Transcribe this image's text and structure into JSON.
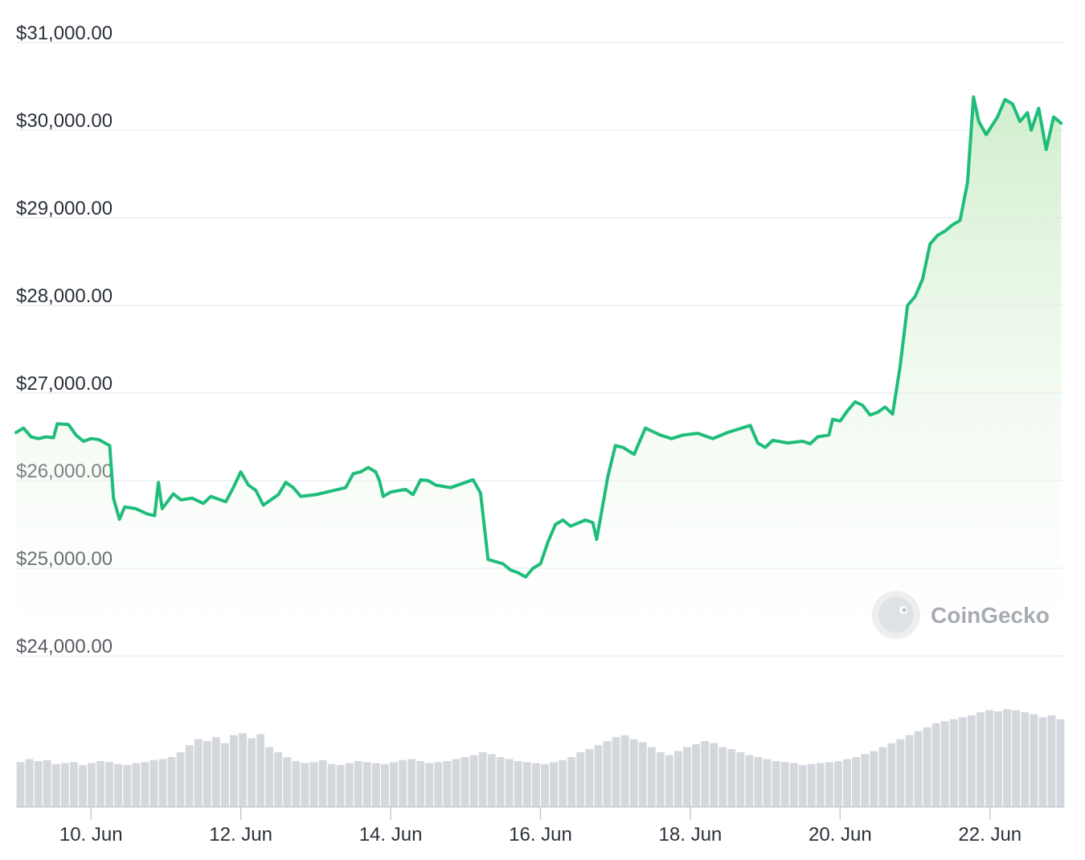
{
  "watermark": {
    "text": "CoinGecko"
  },
  "colors": {
    "line": "#1fbd7a",
    "fill_top": "#c9ebc4",
    "grid": "#eceff2",
    "volume": "#d4d7dc",
    "axis": "#c6cad0",
    "tick_text": "#2b3139"
  },
  "chart_data": {
    "type": "line",
    "title": "",
    "xlabel": "",
    "ylabel": "",
    "x_range": [
      "9 Jun",
      "23 Jun"
    ],
    "ylim": [
      24000,
      31000
    ],
    "y_ticks": [
      {
        "value": 31000,
        "label": "$31,000.00"
      },
      {
        "value": 30000,
        "label": "$30,000.00"
      },
      {
        "value": 29000,
        "label": "$29,000.00"
      },
      {
        "value": 28000,
        "label": "$28,000.00"
      },
      {
        "value": 27000,
        "label": "$27,000.00"
      },
      {
        "value": 26000,
        "label": "$26,000.00"
      },
      {
        "value": 25000,
        "label": "$25,000.00"
      },
      {
        "value": 24000,
        "label": "$24,000.00"
      }
    ],
    "x_ticks": [
      {
        "day": 10,
        "label": "10. Jun"
      },
      {
        "day": 12,
        "label": "12. Jun"
      },
      {
        "day": 14,
        "label": "14. Jun"
      },
      {
        "day": 16,
        "label": "16. Jun"
      },
      {
        "day": 18,
        "label": "18. Jun"
      },
      {
        "day": 20,
        "label": "20. Jun"
      },
      {
        "day": 22,
        "label": "22. Jun"
      }
    ],
    "grid": true,
    "legend": "none",
    "series": [
      {
        "values": [
          [
            9.0,
            26550
          ],
          [
            9.1,
            26600
          ],
          [
            9.2,
            26500
          ],
          [
            9.3,
            26480
          ],
          [
            9.4,
            26500
          ],
          [
            9.5,
            26490
          ],
          [
            9.55,
            26650
          ],
          [
            9.7,
            26640
          ],
          [
            9.8,
            26520
          ],
          [
            9.9,
            26450
          ],
          [
            10.0,
            26480
          ],
          [
            10.1,
            26470
          ],
          [
            10.25,
            26400
          ],
          [
            10.3,
            25800
          ],
          [
            10.38,
            25560
          ],
          [
            10.45,
            25700
          ],
          [
            10.6,
            25680
          ],
          [
            10.75,
            25620
          ],
          [
            10.85,
            25600
          ],
          [
            10.9,
            25980
          ],
          [
            10.95,
            25680
          ],
          [
            11.1,
            25850
          ],
          [
            11.2,
            25780
          ],
          [
            11.35,
            25800
          ],
          [
            11.5,
            25740
          ],
          [
            11.6,
            25820
          ],
          [
            11.8,
            25760
          ],
          [
            11.9,
            25920
          ],
          [
            12.0,
            26100
          ],
          [
            12.1,
            25950
          ],
          [
            12.2,
            25890
          ],
          [
            12.3,
            25720
          ],
          [
            12.4,
            25780
          ],
          [
            12.5,
            25840
          ],
          [
            12.6,
            25980
          ],
          [
            12.7,
            25920
          ],
          [
            12.8,
            25820
          ],
          [
            13.0,
            25840
          ],
          [
            13.2,
            25880
          ],
          [
            13.4,
            25920
          ],
          [
            13.5,
            26080
          ],
          [
            13.6,
            26100
          ],
          [
            13.7,
            26150
          ],
          [
            13.8,
            26100
          ],
          [
            13.85,
            26000
          ],
          [
            13.9,
            25820
          ],
          [
            14.0,
            25870
          ],
          [
            14.2,
            25900
          ],
          [
            14.3,
            25840
          ],
          [
            14.4,
            26010
          ],
          [
            14.5,
            26000
          ],
          [
            14.6,
            25950
          ],
          [
            14.8,
            25920
          ],
          [
            15.0,
            25980
          ],
          [
            15.1,
            26010
          ],
          [
            15.2,
            25860
          ],
          [
            15.3,
            25100
          ],
          [
            15.5,
            25050
          ],
          [
            15.6,
            24980
          ],
          [
            15.7,
            24950
          ],
          [
            15.8,
            24900
          ],
          [
            15.9,
            25000
          ],
          [
            16.0,
            25050
          ],
          [
            16.1,
            25300
          ],
          [
            16.2,
            25500
          ],
          [
            16.3,
            25550
          ],
          [
            16.4,
            25480
          ],
          [
            16.6,
            25550
          ],
          [
            16.7,
            25520
          ],
          [
            16.75,
            25330
          ],
          [
            16.9,
            26050
          ],
          [
            17.0,
            26400
          ],
          [
            17.1,
            26380
          ],
          [
            17.25,
            26300
          ],
          [
            17.4,
            26600
          ],
          [
            17.5,
            26560
          ],
          [
            17.6,
            26520
          ],
          [
            17.75,
            26480
          ],
          [
            17.9,
            26520
          ],
          [
            18.1,
            26540
          ],
          [
            18.3,
            26480
          ],
          [
            18.5,
            26550
          ],
          [
            18.8,
            26630
          ],
          [
            18.9,
            26430
          ],
          [
            19.0,
            26380
          ],
          [
            19.1,
            26460
          ],
          [
            19.3,
            26430
          ],
          [
            19.5,
            26450
          ],
          [
            19.6,
            26420
          ],
          [
            19.7,
            26500
          ],
          [
            19.85,
            26520
          ],
          [
            19.9,
            26700
          ],
          [
            20.0,
            26680
          ],
          [
            20.1,
            26800
          ],
          [
            20.2,
            26900
          ],
          [
            20.3,
            26860
          ],
          [
            20.4,
            26750
          ],
          [
            20.5,
            26780
          ],
          [
            20.6,
            26840
          ],
          [
            20.7,
            26760
          ],
          [
            20.8,
            27300
          ],
          [
            20.9,
            28000
          ],
          [
            21.0,
            28100
          ],
          [
            21.1,
            28300
          ],
          [
            21.2,
            28700
          ],
          [
            21.3,
            28800
          ],
          [
            21.4,
            28850
          ],
          [
            21.5,
            28920
          ],
          [
            21.6,
            28970
          ],
          [
            21.7,
            29400
          ],
          [
            21.78,
            30380
          ],
          [
            21.85,
            30100
          ],
          [
            21.95,
            29950
          ],
          [
            22.1,
            30150
          ],
          [
            22.2,
            30350
          ],
          [
            22.3,
            30300
          ],
          [
            22.4,
            30100
          ],
          [
            22.5,
            30200
          ],
          [
            22.55,
            30000
          ],
          [
            22.65,
            30250
          ],
          [
            22.75,
            29780
          ],
          [
            22.85,
            30150
          ],
          [
            22.95,
            30080
          ]
        ]
      }
    ],
    "volume": {
      "bars": [
        0.45,
        0.48,
        0.46,
        0.47,
        0.43,
        0.44,
        0.45,
        0.42,
        0.44,
        0.46,
        0.45,
        0.43,
        0.42,
        0.44,
        0.45,
        0.47,
        0.48,
        0.5,
        0.55,
        0.62,
        0.68,
        0.66,
        0.7,
        0.64,
        0.72,
        0.74,
        0.69,
        0.73,
        0.6,
        0.55,
        0.5,
        0.46,
        0.44,
        0.45,
        0.47,
        0.43,
        0.42,
        0.44,
        0.46,
        0.45,
        0.44,
        0.43,
        0.45,
        0.47,
        0.48,
        0.46,
        0.44,
        0.45,
        0.46,
        0.48,
        0.5,
        0.52,
        0.55,
        0.53,
        0.5,
        0.48,
        0.46,
        0.45,
        0.44,
        0.43,
        0.45,
        0.47,
        0.5,
        0.55,
        0.58,
        0.62,
        0.66,
        0.7,
        0.72,
        0.68,
        0.65,
        0.6,
        0.55,
        0.52,
        0.56,
        0.6,
        0.63,
        0.66,
        0.64,
        0.6,
        0.58,
        0.55,
        0.52,
        0.5,
        0.48,
        0.46,
        0.45,
        0.44,
        0.42,
        0.43,
        0.44,
        0.45,
        0.46,
        0.48,
        0.5,
        0.53,
        0.56,
        0.6,
        0.64,
        0.68,
        0.72,
        0.76,
        0.8,
        0.84,
        0.86,
        0.88,
        0.9,
        0.92,
        0.95,
        0.97,
        0.96,
        0.98,
        0.97,
        0.95,
        0.93,
        0.9,
        0.92,
        0.88
      ]
    }
  }
}
